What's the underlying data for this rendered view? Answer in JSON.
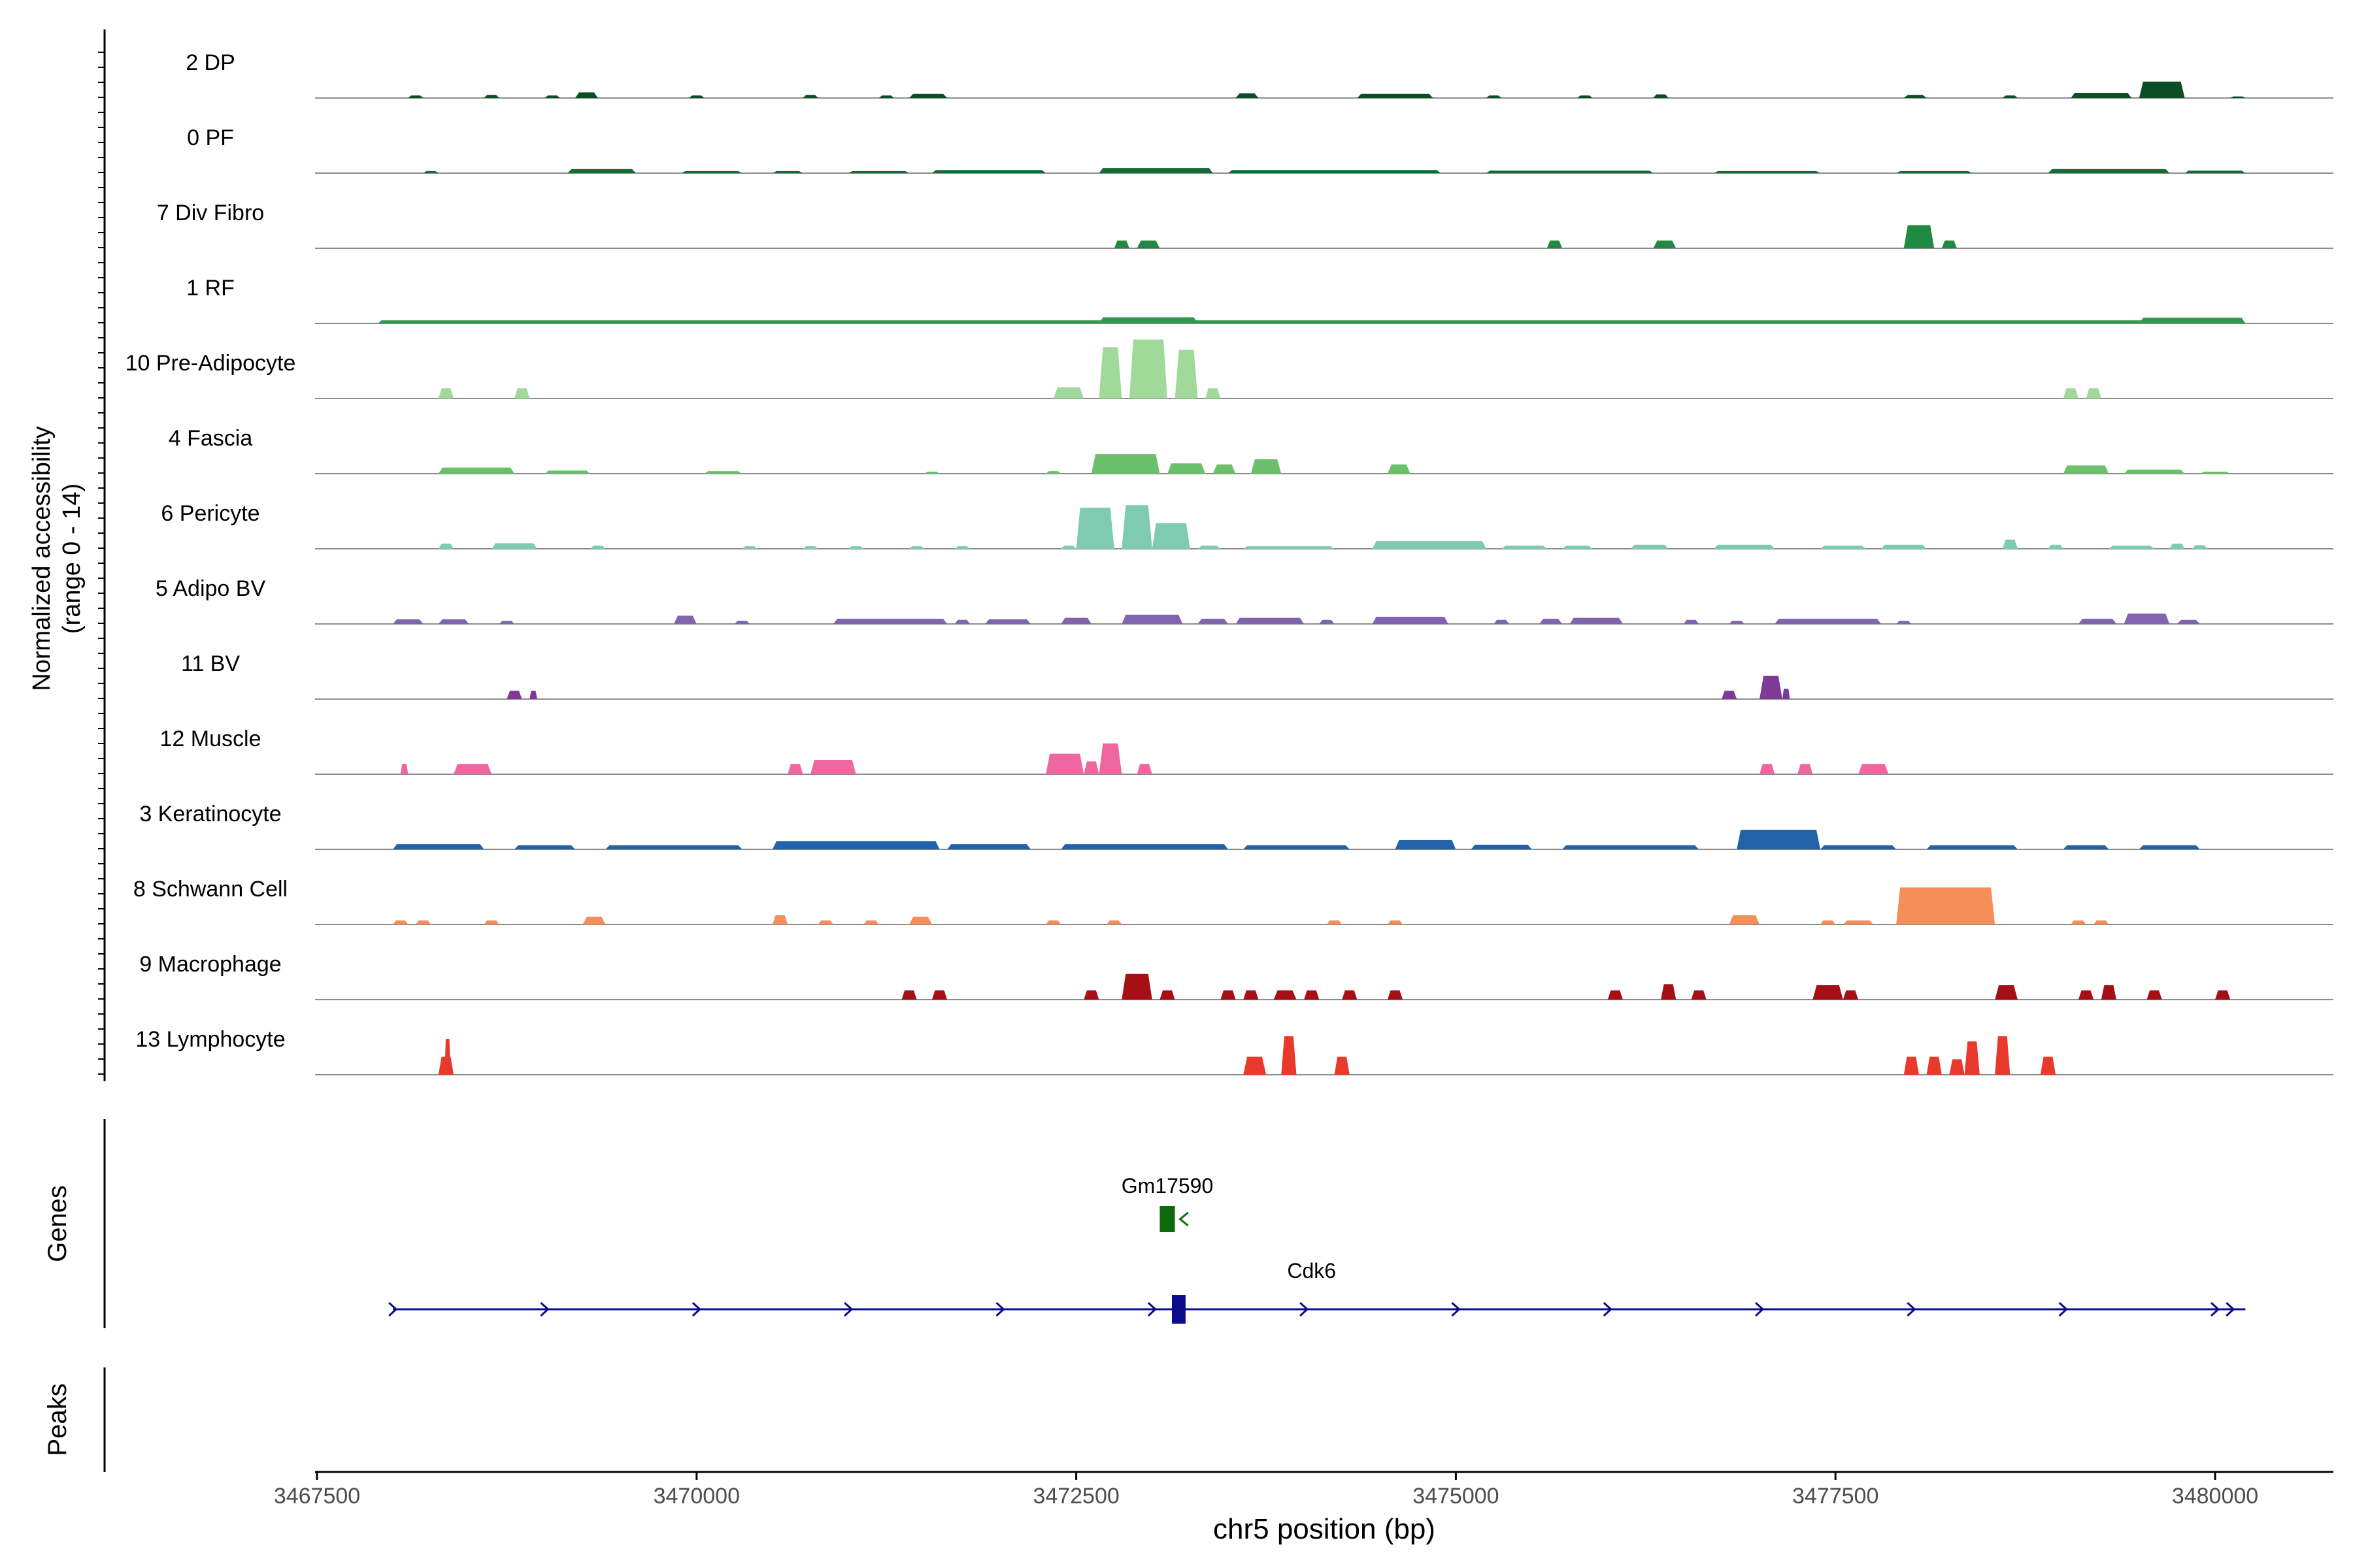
{
  "chart_data": {
    "type": "area",
    "ylabel": "Normalized accessibility",
    "ylabel_range": "(range 0 - 14)",
    "xlabel": "chr5 position (bp)",
    "xlim": [
      3467500,
      3480800
    ],
    "ylim": [
      0,
      14
    ],
    "x_ticks": [
      {
        "value": 3467500,
        "label": "3467500"
      },
      {
        "value": 3470000,
        "label": "3470000"
      },
      {
        "value": 3472500,
        "label": "3472500"
      },
      {
        "value": 3475000,
        "label": "3475000"
      },
      {
        "value": 3477500,
        "label": "3477500"
      },
      {
        "value": 3480000,
        "label": "3480000"
      }
    ],
    "genes_label": "Genes",
    "peaks_label": "Peaks",
    "tracks": [
      {
        "label": "2 DP",
        "color": "#0b4d24",
        "segments": [
          [
            3468100,
            3468200,
            0.5
          ],
          [
            3468600,
            3468700,
            0.6
          ],
          [
            3469000,
            3469100,
            0.5
          ],
          [
            3469200,
            3469350,
            1.1
          ],
          [
            3469950,
            3470050,
            0.5
          ],
          [
            3470700,
            3470800,
            0.6
          ],
          [
            3471200,
            3471300,
            0.5
          ],
          [
            3471400,
            3471650,
            0.8
          ],
          [
            3473550,
            3473700,
            0.9
          ],
          [
            3474350,
            3474850,
            0.8
          ],
          [
            3475200,
            3475300,
            0.5
          ],
          [
            3475800,
            3475900,
            0.5
          ],
          [
            3476300,
            3476400,
            0.7
          ],
          [
            3477950,
            3478100,
            0.6
          ],
          [
            3478600,
            3478700,
            0.5
          ],
          [
            3479050,
            3479450,
            1.0
          ],
          [
            3479500,
            3479800,
            3.2
          ],
          [
            3480100,
            3480200,
            0.3
          ]
        ]
      },
      {
        "label": "0 PF",
        "color": "#146b34",
        "segments": [
          [
            3468200,
            3468300,
            0.4
          ],
          [
            3469150,
            3469600,
            0.8
          ],
          [
            3469900,
            3470300,
            0.4
          ],
          [
            3470500,
            3470700,
            0.4
          ],
          [
            3471000,
            3471400,
            0.4
          ],
          [
            3471550,
            3472300,
            0.6
          ],
          [
            3472650,
            3473400,
            1.0
          ],
          [
            3473500,
            3474900,
            0.6
          ],
          [
            3475200,
            3476300,
            0.5
          ],
          [
            3476700,
            3477400,
            0.4
          ],
          [
            3477900,
            3478400,
            0.4
          ],
          [
            3478900,
            3479700,
            0.8
          ],
          [
            3479800,
            3480200,
            0.5
          ]
        ]
      },
      {
        "label": "7 Div Fibro",
        "color": "#1f8a42",
        "segments": [
          [
            3472750,
            3472850,
            1.5
          ],
          [
            3472900,
            3473050,
            1.5
          ],
          [
            3475600,
            3475700,
            1.5
          ],
          [
            3476300,
            3476450,
            1.5
          ],
          [
            3477950,
            3478150,
            4.5
          ],
          [
            3478200,
            3478300,
            1.5
          ]
        ]
      },
      {
        "label": "1 RF",
        "color": "#2f9a4c",
        "segments": [
          [
            3467900,
            3480200,
            0.6
          ],
          [
            3472650,
            3473300,
            1.2
          ],
          [
            3479500,
            3480200,
            1.1
          ]
        ]
      },
      {
        "label": "10 Pre-Adipocyte",
        "color": "#a1d99b",
        "segments": [
          [
            3468300,
            3468400,
            2.0
          ],
          [
            3468800,
            3468900,
            2.0
          ],
          [
            3472350,
            3472550,
            2.2
          ],
          [
            3472650,
            3472800,
            10.0
          ],
          [
            3472850,
            3473100,
            11.5
          ],
          [
            3473150,
            3473300,
            9.5
          ],
          [
            3473350,
            3473450,
            2.0
          ],
          [
            3479000,
            3479100,
            2.0
          ],
          [
            3479150,
            3479250,
            2.0
          ]
        ]
      },
      {
        "label": "4 Fascia",
        "color": "#6cc06c",
        "segments": [
          [
            3468300,
            3468800,
            1.2
          ],
          [
            3469000,
            3469300,
            0.6
          ],
          [
            3470050,
            3470300,
            0.5
          ],
          [
            3471500,
            3471600,
            0.4
          ],
          [
            3472300,
            3472400,
            0.5
          ],
          [
            3472600,
            3473050,
            3.8
          ],
          [
            3473100,
            3473350,
            2.0
          ],
          [
            3473400,
            3473550,
            1.8
          ],
          [
            3473650,
            3473850,
            2.8
          ],
          [
            3474550,
            3474700,
            1.8
          ],
          [
            3479000,
            3479300,
            1.6
          ],
          [
            3479400,
            3479800,
            0.8
          ],
          [
            3479900,
            3480100,
            0.4
          ]
        ]
      },
      {
        "label": "6 Pericyte",
        "color": "#7ecbb2",
        "segments": [
          [
            3468300,
            3468400,
            1.0
          ],
          [
            3468650,
            3468950,
            1.1
          ],
          [
            3469300,
            3469400,
            0.6
          ],
          [
            3470300,
            3470400,
            0.5
          ],
          [
            3470700,
            3470800,
            0.5
          ],
          [
            3471000,
            3471100,
            0.5
          ],
          [
            3471400,
            3471500,
            0.5
          ],
          [
            3471700,
            3471800,
            0.5
          ],
          [
            3472400,
            3472500,
            0.6
          ],
          [
            3472500,
            3472750,
            8.0
          ],
          [
            3472800,
            3473000,
            8.5
          ],
          [
            3473000,
            3473250,
            5.0
          ],
          [
            3473300,
            3473450,
            0.6
          ],
          [
            3473600,
            3474200,
            0.5
          ],
          [
            3474450,
            3475200,
            1.5
          ],
          [
            3475300,
            3475600,
            0.6
          ],
          [
            3475700,
            3475900,
            0.6
          ],
          [
            3476150,
            3476400,
            0.8
          ],
          [
            3476700,
            3477100,
            0.8
          ],
          [
            3477400,
            3477700,
            0.6
          ],
          [
            3477800,
            3478100,
            0.8
          ],
          [
            3478600,
            3478700,
            1.8
          ],
          [
            3478900,
            3479000,
            0.8
          ],
          [
            3479300,
            3479600,
            0.6
          ],
          [
            3479700,
            3479800,
            1.0
          ],
          [
            3479850,
            3479950,
            0.7
          ]
        ]
      },
      {
        "label": "5 Adipo BV",
        "color": "#8064ae",
        "segments": [
          [
            3468000,
            3468200,
            0.9
          ],
          [
            3468300,
            3468500,
            0.9
          ],
          [
            3468700,
            3468800,
            0.6
          ],
          [
            3469850,
            3470000,
            1.6
          ],
          [
            3470250,
            3470350,
            0.6
          ],
          [
            3470900,
            3471650,
            1.0
          ],
          [
            3471700,
            3471800,
            0.8
          ],
          [
            3471900,
            3472200,
            0.9
          ],
          [
            3472400,
            3472600,
            1.2
          ],
          [
            3472800,
            3473200,
            1.8
          ],
          [
            3473300,
            3473500,
            1.0
          ],
          [
            3473550,
            3474000,
            1.2
          ],
          [
            3474100,
            3474200,
            0.8
          ],
          [
            3474450,
            3474950,
            1.4
          ],
          [
            3475250,
            3475350,
            0.8
          ],
          [
            3475550,
            3475700,
            1.0
          ],
          [
            3475750,
            3476100,
            1.2
          ],
          [
            3476500,
            3476600,
            0.8
          ],
          [
            3476800,
            3476900,
            0.6
          ],
          [
            3477100,
            3477800,
            1.0
          ],
          [
            3477900,
            3478000,
            0.6
          ],
          [
            3479100,
            3479350,
            1.0
          ],
          [
            3479400,
            3479700,
            2.0
          ],
          [
            3479750,
            3479900,
            0.8
          ]
        ]
      },
      {
        "label": "11 BV",
        "color": "#7e3a96",
        "segments": [
          [
            3468750,
            3468850,
            1.6
          ],
          [
            3468900,
            3468950,
            1.6
          ],
          [
            3476750,
            3476850,
            1.6
          ],
          [
            3477000,
            3477150,
            4.5
          ],
          [
            3477150,
            3477200,
            2.0
          ]
        ]
      },
      {
        "label": "12 Muscle",
        "color": "#f066a0",
        "segments": [
          [
            3468050,
            3468100,
            2.0
          ],
          [
            3468400,
            3468650,
            2.0
          ],
          [
            3470600,
            3470700,
            2.0
          ],
          [
            3470750,
            3471050,
            2.8
          ],
          [
            3472300,
            3472550,
            4.0
          ],
          [
            3472550,
            3472650,
            2.5
          ],
          [
            3472650,
            3472800,
            6.0
          ],
          [
            3472900,
            3473000,
            2.0
          ],
          [
            3477000,
            3477100,
            2.0
          ],
          [
            3477250,
            3477350,
            2.0
          ],
          [
            3477650,
            3477850,
            2.0
          ]
        ]
      },
      {
        "label": "3 Keratinocyte",
        "color": "#2262a8",
        "segments": [
          [
            3468000,
            3468600,
            1.0
          ],
          [
            3468800,
            3469200,
            0.8
          ],
          [
            3469400,
            3470300,
            0.8
          ],
          [
            3470500,
            3471600,
            1.6
          ],
          [
            3471650,
            3472200,
            1.0
          ],
          [
            3472400,
            3473500,
            1.0
          ],
          [
            3473600,
            3474300,
            0.8
          ],
          [
            3474600,
            3475000,
            1.8
          ],
          [
            3475100,
            3475500,
            0.9
          ],
          [
            3475700,
            3476600,
            0.8
          ],
          [
            3476850,
            3477400,
            3.8
          ],
          [
            3477400,
            3477900,
            0.8
          ],
          [
            3478100,
            3478700,
            0.8
          ],
          [
            3479000,
            3479300,
            0.8
          ],
          [
            3479500,
            3479900,
            0.8
          ]
        ]
      },
      {
        "label": "8 Schwann Cell",
        "color": "#f58e58",
        "segments": [
          [
            3468000,
            3468100,
            0.8
          ],
          [
            3468150,
            3468250,
            0.8
          ],
          [
            3468600,
            3468700,
            0.8
          ],
          [
            3469250,
            3469400,
            1.5
          ],
          [
            3470500,
            3470600,
            1.8
          ],
          [
            3470800,
            3470900,
            0.8
          ],
          [
            3471100,
            3471200,
            0.8
          ],
          [
            3471400,
            3471550,
            1.5
          ],
          [
            3472300,
            3472400,
            0.8
          ],
          [
            3472700,
            3472800,
            0.8
          ],
          [
            3474150,
            3474250,
            0.8
          ],
          [
            3474550,
            3474650,
            0.8
          ],
          [
            3476800,
            3477000,
            1.8
          ],
          [
            3477400,
            3477500,
            0.8
          ],
          [
            3477550,
            3477750,
            0.8
          ],
          [
            3477900,
            3478550,
            7.2
          ],
          [
            3479050,
            3479150,
            0.8
          ],
          [
            3479200,
            3479300,
            0.8
          ]
        ]
      },
      {
        "label": "9 Macrophage",
        "color": "#a50f15",
        "segments": [
          [
            3471350,
            3471450,
            1.8
          ],
          [
            3471550,
            3471650,
            1.8
          ],
          [
            3472550,
            3472650,
            1.8
          ],
          [
            3472800,
            3473000,
            5.0
          ],
          [
            3473050,
            3473150,
            1.8
          ],
          [
            3473450,
            3473550,
            1.8
          ],
          [
            3473600,
            3473700,
            1.8
          ],
          [
            3473800,
            3473950,
            1.8
          ],
          [
            3474000,
            3474100,
            1.8
          ],
          [
            3474250,
            3474350,
            1.8
          ],
          [
            3474550,
            3474650,
            1.8
          ],
          [
            3476000,
            3476100,
            1.8
          ],
          [
            3476350,
            3476450,
            3.0
          ],
          [
            3476550,
            3476650,
            1.8
          ],
          [
            3477350,
            3477550,
            2.8
          ],
          [
            3477550,
            3477650,
            1.8
          ],
          [
            3478550,
            3478700,
            2.8
          ],
          [
            3479100,
            3479200,
            1.8
          ],
          [
            3479250,
            3479350,
            2.8
          ],
          [
            3479550,
            3479650,
            1.8
          ],
          [
            3480000,
            3480100,
            1.8
          ]
        ]
      },
      {
        "label": "13 Lymphocyte",
        "color": "#e8392c",
        "segments": [
          [
            3468300,
            3468400,
            3.5
          ],
          [
            3468340,
            3468380,
            7.0
          ],
          [
            3473600,
            3473750,
            3.5
          ],
          [
            3473850,
            3473950,
            7.5
          ],
          [
            3474200,
            3474300,
            3.5
          ],
          [
            3477950,
            3478050,
            3.5
          ],
          [
            3478100,
            3478200,
            3.5
          ],
          [
            3478250,
            3478350,
            3.0
          ],
          [
            3478350,
            3478450,
            6.5
          ],
          [
            3478550,
            3478650,
            7.5
          ],
          [
            3478850,
            3478950,
            3.5
          ]
        ]
      }
    ],
    "genes": [
      {
        "name": "Gm17590",
        "color": "#0d6b0d",
        "start": 3473050,
        "end": 3473150,
        "strand": "-",
        "row": 1
      },
      {
        "name": "Cdk6",
        "color": "#0b0b8c",
        "start": 3468000,
        "end": 3480200,
        "strand": "+",
        "row": 2,
        "exon_start": 3473130,
        "exon_end": 3473220,
        "label_x": 3474050,
        "arrow_positions": [
          3468000,
          3469000,
          3470000,
          3471000,
          3472000,
          3473000,
          3474000,
          3475000,
          3476000,
          3477000,
          3478000,
          3479000,
          3480000,
          3480100
        ]
      }
    ],
    "peaks": []
  }
}
